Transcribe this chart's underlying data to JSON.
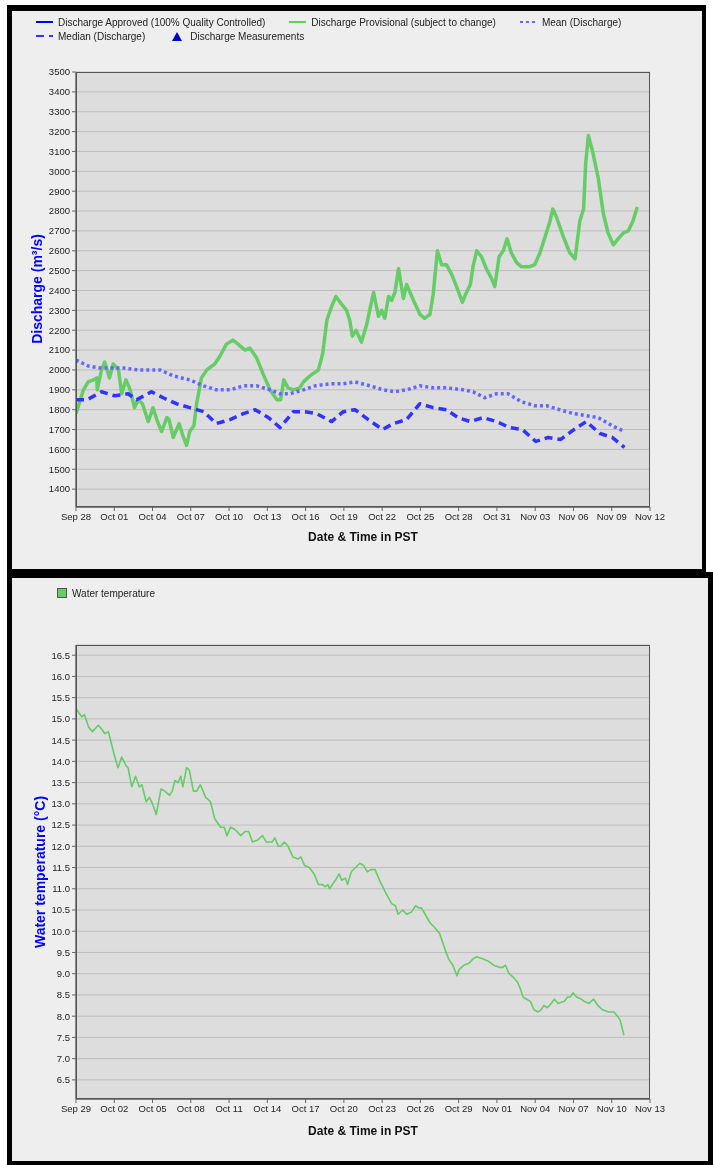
{
  "chart_data": [
    {
      "type": "line",
      "xlabel": "Date & Time in PST",
      "ylabel": "Discharge (m³/s)",
      "legend": "top",
      "grid": "y",
      "xlim": [
        "--09-28",
        "--11-12"
      ],
      "xticks": [
        {
          "value": "--09-28",
          "label": "Sep 28"
        },
        {
          "value": "--10-01",
          "label": "Oct 01"
        },
        {
          "value": "--10-04",
          "label": "Oct 04"
        },
        {
          "value": "--10-07",
          "label": "Oct 07"
        },
        {
          "value": "--10-10",
          "label": "Oct 10"
        },
        {
          "value": "--10-13",
          "label": "Oct 13"
        },
        {
          "value": "--10-16",
          "label": "Oct 16"
        },
        {
          "value": "--10-19",
          "label": "Oct 19"
        },
        {
          "value": "--10-22",
          "label": "Oct 22"
        },
        {
          "value": "--10-25",
          "label": "Oct 25"
        },
        {
          "value": "--10-28",
          "label": "Oct 28"
        },
        {
          "value": "--10-31",
          "label": "Oct 31"
        },
        {
          "value": "--11-03",
          "label": "Nov 03"
        },
        {
          "value": "--11-06",
          "label": "Nov 06"
        },
        {
          "value": "--11-09",
          "label": "Nov 09"
        },
        {
          "value": "--11-12",
          "label": "Nov 12"
        }
      ],
      "ylim": [
        1310,
        3500
      ],
      "yticks": [
        1400,
        1500,
        1600,
        1700,
        1800,
        1900,
        2000,
        2100,
        2200,
        2300,
        2400,
        2500,
        2600,
        2700,
        2800,
        2900,
        3000,
        3100,
        3200,
        3300,
        3400,
        3500
      ],
      "series": [
        {
          "name": "Discharge Approved (100% Quality Controlled)",
          "color": "#0000ff"
        },
        {
          "name": "Discharge Provisional (subject to change)",
          "color": "#66cc66",
          "x": [
            "--09-28T00:00",
            "--09-28T14:00",
            "--09-28T23:00",
            "--09-29T09:00",
            "--09-29T15:00",
            "--09-29T16:00",
            "--09-30T00:00",
            "--09-30T06:00",
            "--09-30T15:00",
            "--09-30T22:00",
            "--10-01T08:00",
            "--10-01T14:00",
            "--10-01T22:00",
            "--10-02T06:00",
            "--10-02T14:00",
            "--10-02T21:00",
            "--10-03T05:00",
            "--10-03T16:00",
            "--10-04T01:00",
            "--10-04T08:00",
            "--10-04T17:00",
            "--10-05T03:00",
            "--10-05T07:00",
            "--10-05T15:00",
            "--10-06T02:00",
            "--10-06T09:00",
            "--10-06T16:00",
            "--10-06T22:00",
            "--10-07T06:00",
            "--10-07T11:00",
            "--10-07T20:00",
            "--10-08T06:00",
            "--10-08T21:00",
            "--10-09T07:00",
            "--10-09T19:00",
            "--10-10T07:00",
            "--10-10T17:00",
            "--10-11T06:00",
            "--10-11T15:00",
            "--10-12T04:00",
            "--10-12T16:00",
            "--10-13T05:00",
            "--10-13T18:00",
            "--10-14T01:00",
            "--10-14T07:00",
            "--10-14T15:00",
            "--10-15T01:00",
            "--10-15T13:00",
            "--10-15T20:00",
            "--10-16T08:00",
            "--10-17T00:00",
            "--10-17T08:00",
            "--10-17T16:00",
            "--10-18T01:00",
            "--10-18T09:00",
            "--10-18T20:00",
            "--10-19T05:00",
            "--10-19T11:00",
            "--10-19T16:00",
            "--10-19T23:00",
            "--10-20T09:00",
            "--10-20T19:00",
            "--10-21T03:00",
            "--10-21T08:00",
            "--10-21T17:00",
            "--10-21T23:00",
            "--10-22T05:00",
            "--10-22T12:00",
            "--10-22T18:00",
            "--10-23T00:00",
            "--10-23T07:00",
            "--10-23T16:00",
            "--10-23T22:00",
            "--10-24T11:00",
            "--10-24T23:00",
            "--10-25T08:00",
            "--10-25T18:00",
            "--10-26T00:00",
            "--10-26T08:00",
            "--10-26T16:00",
            "--10-27T01:00",
            "--10-27T11:00",
            "--10-27T20:00",
            "--10-28T07:00",
            "--10-28T13:00",
            "--10-28T22:00",
            "--10-29T03:00",
            "--10-29T10:00",
            "--10-29T19:00",
            "--10-30T04:00",
            "--10-30T14:00",
            "--10-30T20:00",
            "--10-31T04:00",
            "--10-31T12:00",
            "--10-31T19:00",
            "--11-01T03:00",
            "--11-01T13:00",
            "--11-01T22:00",
            "--11-02T14:00",
            "--11-02T23:00",
            "--11-03T09:00",
            "--11-03T21:00",
            "--11-04T04:00",
            "--11-04T09:00",
            "--11-04T16:00",
            "--11-05T05:00",
            "--11-05T17:00",
            "--11-06T03:00",
            "--11-06T12:00",
            "--11-06T19:00",
            "--11-06T23:00",
            "--11-07T04:00",
            "--11-07T12:00",
            "--11-07T23:00",
            "--11-08T08:00",
            "--11-08T17:00",
            "--11-09T03:00",
            "--11-09T12:00",
            "--11-09T22:00",
            "--11-10T07:00",
            "--11-10T16:00",
            "--11-11T00:00"
          ],
          "values": [
            1780,
            1900,
            1940,
            1950,
            1960,
            1900,
            2000,
            2040,
            1960,
            2030,
            2000,
            1880,
            1950,
            1900,
            1810,
            1850,
            1830,
            1740,
            1810,
            1750,
            1690,
            1760,
            1750,
            1660,
            1730,
            1670,
            1620,
            1690,
            1720,
            1830,
            1960,
            2000,
            2030,
            2070,
            2130,
            2150,
            2130,
            2100,
            2110,
            2060,
            1980,
            1900,
            1850,
            1850,
            1950,
            1910,
            1900,
            1910,
            1940,
            1970,
            2000,
            2080,
            2250,
            2320,
            2370,
            2330,
            2300,
            2250,
            2170,
            2200,
            2140,
            2230,
            2330,
            2390,
            2270,
            2300,
            2260,
            2370,
            2350,
            2390,
            2510,
            2360,
            2430,
            2350,
            2280,
            2260,
            2280,
            2380,
            2600,
            2530,
            2530,
            2480,
            2420,
            2340,
            2380,
            2430,
            2520,
            2600,
            2570,
            2510,
            2460,
            2420,
            2570,
            2600,
            2660,
            2590,
            2540,
            2520,
            2520,
            2530,
            2590,
            2690,
            2750,
            2810,
            2770,
            2670,
            2590,
            2560,
            2750,
            2810,
            3040,
            3180,
            3100,
            2960,
            2790,
            2690,
            2630,
            2660,
            2690,
            2700,
            2750,
            2820
          ]
        },
        {
          "name": "Mean (Discharge)",
          "color": "#6666ff",
          "line_style": "dotted",
          "x": [
            "--09-28T00:00",
            "--09-28T23:00",
            "--09-29T21:00",
            "--10-01T17:00",
            "--10-02T21:00",
            "--10-04T14:00",
            "--10-05T15:00",
            "--10-06T22:00",
            "--10-08T00:00",
            "--10-09T00:00",
            "--10-10T02:00",
            "--10-11T03:00",
            "--10-12T04:00",
            "--10-13T05:00",
            "--10-14T00:00",
            "--10-14T18:00",
            "--10-15T20:00",
            "--10-16T18:00",
            "--10-17T22:00",
            "--10-18T23:00",
            "--10-19T21:00",
            "--10-21T01:00",
            "--10-22T02:00",
            "--10-23T00:00",
            "--10-23T22:00",
            "--10-24T23:00",
            "--10-26T00:00",
            "--10-27T01:00",
            "--10-28T09:00",
            "--10-29T03:00",
            "--10-30T01:00",
            "--10-30T23:00",
            "--10-31T21:00",
            "--11-01T22:00",
            "--11-02T23:00",
            "--11-03T21:00",
            "--11-04T22:00",
            "--11-06T00:00",
            "--11-07T00:00",
            "--11-07T23:00",
            "--11-09T00:00",
            "--11-10T00:00"
          ],
          "values": [
            2050,
            2020,
            2010,
            2010,
            2000,
            2000,
            1970,
            1950,
            1920,
            1900,
            1900,
            1920,
            1920,
            1900,
            1880,
            1880,
            1900,
            1920,
            1930,
            1930,
            1940,
            1920,
            1900,
            1890,
            1900,
            1920,
            1910,
            1910,
            1900,
            1890,
            1860,
            1880,
            1880,
            1840,
            1820,
            1820,
            1800,
            1780,
            1770,
            1760,
            1720,
            1690
          ]
        },
        {
          "name": "Median (Discharge)",
          "color": "#3333ff",
          "line_style": "dashed",
          "x": [
            "--09-28T00:00",
            "--09-28T21:00",
            "--09-30T00:00",
            "--10-01T01:00",
            "--10-02T02:00",
            "--10-02T18:00",
            "--10-03T22:00",
            "--10-04T20:00",
            "--10-05T21:00",
            "--10-06T22:00",
            "--10-08T00:00",
            "--10-09T00:00",
            "--10-10T02:00",
            "--10-11T03:00",
            "--10-12T01:00",
            "--10-13T02:00",
            "--10-14T00:00",
            "--10-15T01:00",
            "--10-15T23:00",
            "--10-16T21:00",
            "--10-18T01:00",
            "--10-18T23:00",
            "--10-19T21:00",
            "--10-20T22:00",
            "--10-22T01:00",
            "--10-22T21:00",
            "--10-23T22:00",
            "--10-24T23:00",
            "--10-26T00:00",
            "--10-27T01:00",
            "--10-27T23:00",
            "--10-28T22:00",
            "--10-29T22:00",
            "--10-30T23:00",
            "--11-01T00:00",
            "--11-02T00:00",
            "--11-03T01:00",
            "--11-04T00:00",
            "--11-05T00:00",
            "--11-06T01:00",
            "--11-07T00:00",
            "--11-08T02:00",
            "--11-09T01:00",
            "--11-10T00:00"
          ],
          "values": [
            1850,
            1850,
            1890,
            1870,
            1880,
            1850,
            1890,
            1860,
            1830,
            1810,
            1790,
            1730,
            1750,
            1780,
            1800,
            1760,
            1710,
            1790,
            1790,
            1780,
            1740,
            1790,
            1800,
            1750,
            1700,
            1730,
            1750,
            1830,
            1810,
            1800,
            1760,
            1740,
            1760,
            1740,
            1710,
            1700,
            1640,
            1660,
            1650,
            1700,
            1740,
            1680,
            1660,
            1610
          ]
        },
        {
          "name": "Discharge Measurements",
          "type": "scatter",
          "marker": "triangle",
          "color": "#0000cc"
        }
      ]
    },
    {
      "type": "line",
      "xlabel": "Date & Time in PST",
      "ylabel": "Water temperature (°C)",
      "legend": "top left",
      "grid": "y",
      "xlim": [
        "--09-29",
        "--11-13"
      ],
      "xticks": [
        {
          "value": "--09-29",
          "label": "Sep 29"
        },
        {
          "value": "--10-02",
          "label": "Oct 02"
        },
        {
          "value": "--10-05",
          "label": "Oct 05"
        },
        {
          "value": "--10-08",
          "label": "Oct 08"
        },
        {
          "value": "--10-11",
          "label": "Oct 11"
        },
        {
          "value": "--10-14",
          "label": "Oct 14"
        },
        {
          "value": "--10-17",
          "label": "Oct 17"
        },
        {
          "value": "--10-20",
          "label": "Oct 20"
        },
        {
          "value": "--10-23",
          "label": "Oct 23"
        },
        {
          "value": "--10-26",
          "label": "Oct 26"
        },
        {
          "value": "--10-29",
          "label": "Oct 29"
        },
        {
          "value": "--11-01",
          "label": "Nov 01"
        },
        {
          "value": "--11-04",
          "label": "Nov 04"
        },
        {
          "value": "--11-07",
          "label": "Nov 07"
        },
        {
          "value": "--11-10",
          "label": "Nov 10"
        },
        {
          "value": "--11-13",
          "label": "Nov 13"
        }
      ],
      "ylim": [
        6.05,
        16.74
      ],
      "yticks": [
        6.5,
        {
          "value": 7,
          "label": "7.0"
        },
        7.5,
        {
          "value": 8,
          "label": "8.0"
        },
        8.5,
        {
          "value": 9,
          "label": "9.0"
        },
        9.5,
        {
          "value": 10,
          "label": "10.0"
        },
        10.5,
        {
          "value": 11,
          "label": "11.0"
        },
        11.5,
        {
          "value": 12,
          "label": "12.0"
        },
        12.5,
        {
          "value": 13,
          "label": "13.0"
        },
        13.5,
        {
          "value": 14,
          "label": "14.0"
        },
        14.5,
        {
          "value": 15,
          "label": "15.0"
        },
        15.5,
        {
          "value": 16,
          "label": "16.0"
        },
        16.5
      ],
      "series": [
        {
          "name": "Water temperature",
          "color": "#66cc66",
          "x": [
            "--09-29T00:00",
            "--09-29T05:00",
            "--09-29T11:00",
            "--09-29T16:00",
            "--09-30T00:00",
            "--09-30T07:00",
            "--09-30T18:00",
            "--10-01T01:00",
            "--10-01T06:00",
            "--10-01T13:00",
            "--10-01T18:00",
            "--10-02T00:00",
            "--10-02T07:00",
            "--10-02T14:00",
            "--10-02T22:00",
            "--10-03T02:00",
            "--10-03T09:00",
            "--10-03T16:00",
            "--10-03T23:00",
            "--10-04T04:00",
            "--10-04T12:00",
            "--10-04T18:00",
            "--10-05T00:00",
            "--10-05T07:00",
            "--10-05T16:00",
            "--10-05T23:00",
            "--10-06T08:00",
            "--10-06T13:00",
            "--10-06T18:00",
            "--10-07T00:00",
            "--10-07T05:00",
            "--10-07T09:00",
            "--10-07T16:00",
            "--10-07T21:00",
            "--10-08T05:00",
            "--10-08T11:00",
            "--10-08T18:00",
            "--10-08T23:00",
            "--10-09T04:00",
            "--10-09T13:00",
            "--10-09T21:00",
            "--10-10T08:00",
            "--10-10T15:00",
            "--10-10T20:00",
            "--10-11T03:00",
            "--10-11T10:00",
            "--10-11T15:00",
            "--10-11T22:00",
            "--10-12T06:00",
            "--10-12T13:00",
            "--10-12T20:00",
            "--10-13T06:00",
            "--10-13T15:00",
            "--10-13T22:00",
            "--10-14T09:00",
            "--10-14T14:00",
            "--10-14T21:00",
            "--10-15T01:00",
            "--10-15T08:00",
            "--10-15T15:00",
            "--10-16T00:00",
            "--10-16T10:00",
            "--10-16T15:00",
            "--10-16T22:00",
            "--10-17T07:00",
            "--10-17T16:00",
            "--10-18T00:00",
            "--10-18T07:00",
            "--10-18T13:00",
            "--10-18T18:00",
            "--10-18T21:00",
            "--10-19T08:00",
            "--10-19T15:00",
            "--10-19T20:00",
            "--10-20T03:00",
            "--10-20T07:00",
            "--10-20T14:00",
            "--10-20T22:00",
            "--10-21T06:00",
            "--10-21T13:00",
            "--10-21T20:00",
            "--10-22T03:00",
            "--10-22T11:00",
            "--10-22T14:00",
            "--10-22T21:00",
            "--10-23T07:00",
            "--10-23T18:00",
            "--10-24T01:00",
            "--10-24T06:00",
            "--10-24T15:00",
            "--10-24T22:00",
            "--10-25T07:00",
            "--10-25T15:00",
            "--10-25T21:00",
            "--10-26T02:00",
            "--10-26T09:00",
            "--10-26T18:00",
            "--10-27T02:00",
            "--10-27T12:00",
            "--10-27T23:00",
            "--10-28T05:00",
            "--10-28T13:00",
            "--10-28T21:00",
            "--10-29T01:00",
            "--10-29T10:00",
            "--10-29T20:00",
            "--10-30T03:00",
            "--10-30T10:00",
            "--10-30T21:00",
            "--10-31T07:00",
            "--10-31T18:00",
            "--11-01T04:00",
            "--11-01T11:00",
            "--11-01T16:00",
            "--11-01T23:00",
            "--11-02T08:00",
            "--11-02T15:00",
            "--11-02T20:00",
            "--11-03T01:00",
            "--11-03T08:00",
            "--11-03T15:00",
            "--11-03T22:00",
            "--11-04T05:00",
            "--11-04T11:00",
            "--11-04T16:00",
            "--11-04T23:00",
            "--11-05T06:00",
            "--11-05T12:00",
            "--11-05T19:00",
            "--11-06T07:00",
            "--11-06T13:00",
            "--11-06T18:00",
            "--11-06T23:00",
            "--11-07T06:00",
            "--11-07T15:00",
            "--11-07T20:00",
            "--11-08T05:00",
            "--11-08T14:00",
            "--11-08T22:00",
            "--11-09T07:00",
            "--11-09T18:00",
            "--11-10T04:00",
            "--11-10T11:00",
            "--11-10T16:00",
            "--11-10T23:00"
          ],
          "values": [
            15.25,
            15.15,
            15.05,
            15.1,
            14.8,
            14.7,
            14.85,
            14.75,
            14.65,
            14.7,
            14.45,
            14.15,
            13.85,
            14.1,
            13.9,
            13.85,
            13.4,
            13.65,
            13.4,
            13.45,
            13.05,
            13.15,
            13.0,
            12.75,
            13.35,
            13.3,
            13.2,
            13.3,
            13.55,
            13.5,
            13.65,
            13.4,
            13.85,
            13.8,
            13.3,
            13.3,
            13.45,
            13.3,
            13.15,
            13.05,
            12.65,
            12.45,
            12.45,
            12.25,
            12.45,
            12.4,
            12.35,
            12.25,
            12.35,
            12.35,
            12.1,
            12.15,
            12.25,
            12.1,
            12.1,
            12.2,
            12.0,
            12.0,
            12.1,
            12.0,
            11.75,
            11.7,
            11.75,
            11.55,
            11.5,
            11.35,
            11.1,
            11.1,
            11.05,
            11.1,
            11.0,
            11.2,
            11.35,
            11.2,
            11.25,
            11.1,
            11.4,
            11.5,
            11.6,
            11.55,
            11.4,
            11.45,
            11.45,
            11.35,
            11.15,
            10.9,
            10.65,
            10.6,
            10.4,
            10.5,
            10.4,
            10.45,
            10.6,
            10.55,
            10.55,
            10.4,
            10.2,
            10.1,
            9.95,
            9.55,
            9.35,
            9.2,
            8.95,
            9.1,
            9.2,
            9.25,
            9.35,
            9.4,
            9.35,
            9.3,
            9.2,
            9.15,
            9.15,
            9.2,
            9.0,
            8.9,
            8.8,
            8.65,
            8.45,
            8.4,
            8.35,
            8.15,
            8.1,
            8.15,
            8.25,
            8.2,
            8.3,
            8.4,
            8.3,
            8.35,
            8.45,
            8.45,
            8.55,
            8.45,
            8.4,
            8.35,
            8.3,
            8.4,
            8.25,
            8.15,
            8.1,
            8.1,
            8.0,
            7.9,
            7.55
          ]
        }
      ]
    }
  ]
}
